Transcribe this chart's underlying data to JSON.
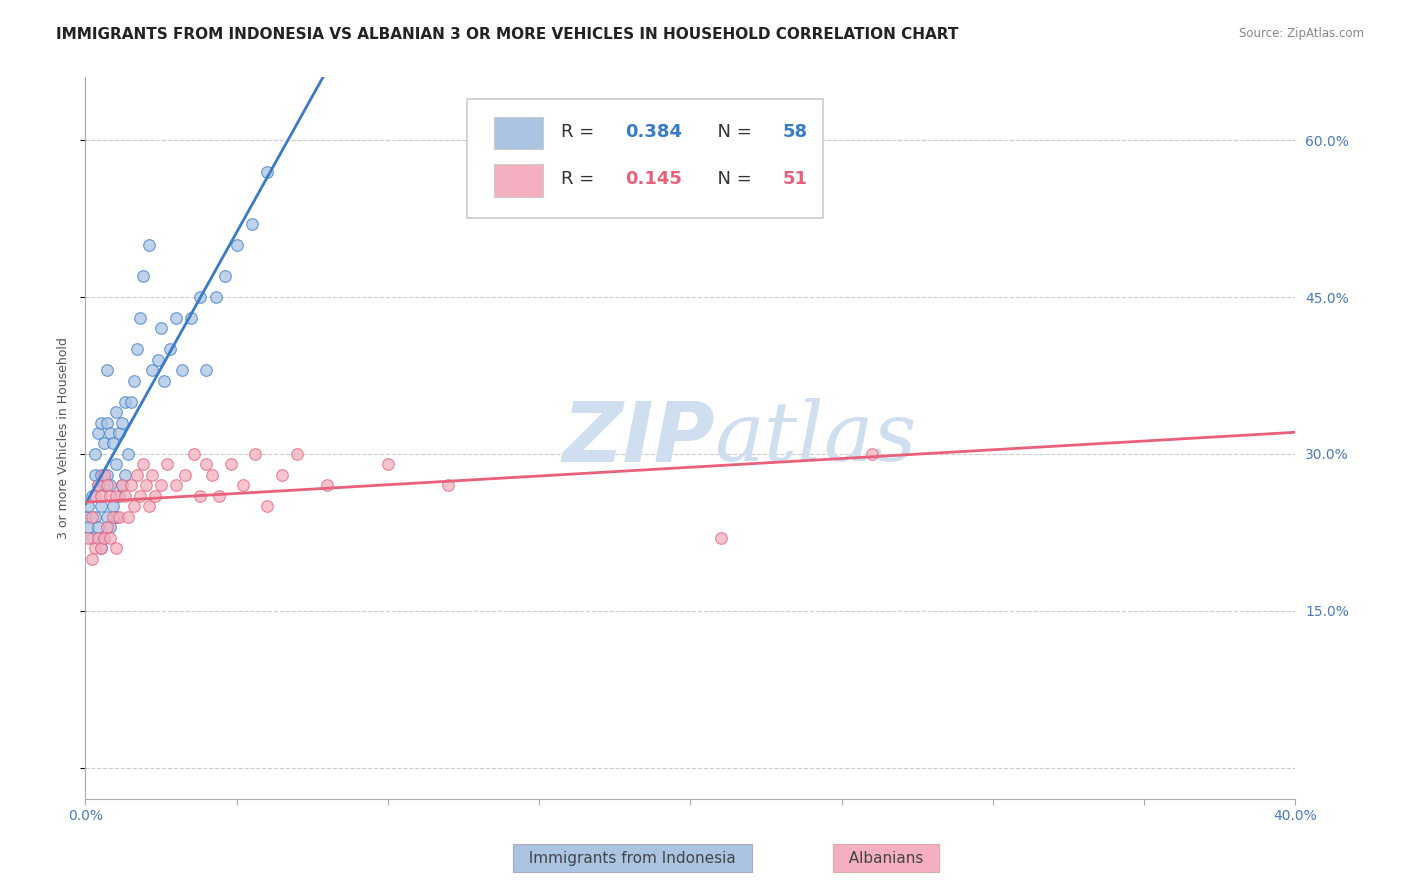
{
  "title": "IMMIGRANTS FROM INDONESIA VS ALBANIAN 3 OR MORE VEHICLES IN HOUSEHOLD CORRELATION CHART",
  "source": "Source: ZipAtlas.com",
  "ylabel": "3 or more Vehicles in Household",
  "xlim": [
    0.0,
    0.4
  ],
  "ylim": [
    -0.03,
    0.66
  ],
  "xticks": [
    0.0,
    0.05,
    0.1,
    0.15,
    0.2,
    0.25,
    0.3,
    0.35,
    0.4
  ],
  "yticks_right": [
    0.0,
    0.15,
    0.3,
    0.45,
    0.6
  ],
  "ytick_labels_right": [
    "",
    "15.0%",
    "30.0%",
    "45.0%",
    "60.0%"
  ],
  "R_indonesia": 0.384,
  "N_indonesia": 58,
  "R_albanian": 0.145,
  "N_albanian": 51,
  "color_indonesia": "#aac4e2",
  "color_albanian": "#f4b0c0",
  "color_indonesia_line": "#3a7bc8",
  "color_albanian_line": "#e8607a",
  "color_indonesia_text": "#3a7bc8",
  "color_albanian_text": "#e8607a",
  "watermark_color": "#d0dff0",
  "title_fontsize": 11,
  "axis_label_fontsize": 9,
  "tick_fontsize": 10,
  "indonesia_scatter_x": [
    0.0005,
    0.001,
    0.001,
    0.002,
    0.002,
    0.003,
    0.003,
    0.003,
    0.004,
    0.004,
    0.004,
    0.005,
    0.005,
    0.005,
    0.005,
    0.006,
    0.006,
    0.006,
    0.007,
    0.007,
    0.007,
    0.007,
    0.008,
    0.008,
    0.008,
    0.009,
    0.009,
    0.01,
    0.01,
    0.01,
    0.011,
    0.011,
    0.012,
    0.012,
    0.013,
    0.013,
    0.014,
    0.015,
    0.016,
    0.017,
    0.018,
    0.019,
    0.021,
    0.022,
    0.024,
    0.025,
    0.026,
    0.028,
    0.03,
    0.032,
    0.035,
    0.038,
    0.04,
    0.043,
    0.046,
    0.05,
    0.055,
    0.06
  ],
  "indonesia_scatter_y": [
    0.24,
    0.23,
    0.25,
    0.22,
    0.26,
    0.24,
    0.28,
    0.3,
    0.23,
    0.27,
    0.32,
    0.21,
    0.25,
    0.28,
    0.33,
    0.22,
    0.27,
    0.31,
    0.24,
    0.28,
    0.33,
    0.38,
    0.23,
    0.27,
    0.32,
    0.25,
    0.31,
    0.24,
    0.29,
    0.34,
    0.26,
    0.32,
    0.27,
    0.33,
    0.28,
    0.35,
    0.3,
    0.35,
    0.37,
    0.4,
    0.43,
    0.47,
    0.5,
    0.38,
    0.39,
    0.42,
    0.37,
    0.4,
    0.43,
    0.38,
    0.43,
    0.45,
    0.38,
    0.45,
    0.47,
    0.5,
    0.52,
    0.57
  ],
  "albanian_scatter_x": [
    0.001,
    0.002,
    0.002,
    0.003,
    0.003,
    0.004,
    0.004,
    0.005,
    0.005,
    0.006,
    0.006,
    0.007,
    0.007,
    0.008,
    0.008,
    0.009,
    0.01,
    0.01,
    0.011,
    0.012,
    0.013,
    0.014,
    0.015,
    0.016,
    0.017,
    0.018,
    0.019,
    0.02,
    0.021,
    0.022,
    0.023,
    0.025,
    0.027,
    0.03,
    0.033,
    0.036,
    0.038,
    0.04,
    0.042,
    0.044,
    0.048,
    0.052,
    0.056,
    0.06,
    0.065,
    0.07,
    0.08,
    0.1,
    0.12,
    0.21,
    0.26
  ],
  "albanian_scatter_y": [
    0.22,
    0.2,
    0.24,
    0.21,
    0.26,
    0.22,
    0.27,
    0.21,
    0.26,
    0.22,
    0.28,
    0.23,
    0.27,
    0.22,
    0.26,
    0.24,
    0.21,
    0.26,
    0.24,
    0.27,
    0.26,
    0.24,
    0.27,
    0.25,
    0.28,
    0.26,
    0.29,
    0.27,
    0.25,
    0.28,
    0.26,
    0.27,
    0.29,
    0.27,
    0.28,
    0.3,
    0.26,
    0.29,
    0.28,
    0.26,
    0.29,
    0.27,
    0.3,
    0.25,
    0.28,
    0.3,
    0.27,
    0.29,
    0.27,
    0.22,
    0.3
  ]
}
